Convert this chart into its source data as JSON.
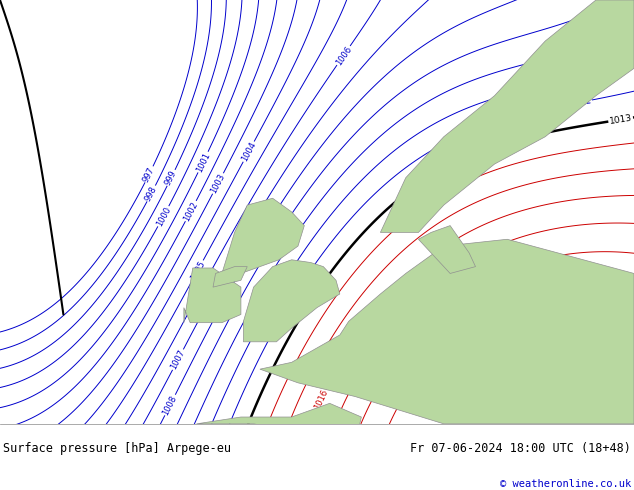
{
  "title_left": "Surface pressure [hPa] Arpege-eu",
  "title_right": "Fr 07-06-2024 18:00 UTC (18+48)",
  "copyright": "© weatheronline.co.uk",
  "bg_color": "#d4d4d8",
  "land_color": "#b8d8a0",
  "land_border_color": "#909090",
  "footer_bg": "#ffffff",
  "footer_text_color": "#000000",
  "copyright_color": "#0000cc",
  "blue_color": "#0000cc",
  "black_color": "#000000",
  "red_color": "#cc0000",
  "figsize": [
    6.34,
    4.9
  ],
  "dpi": 100
}
